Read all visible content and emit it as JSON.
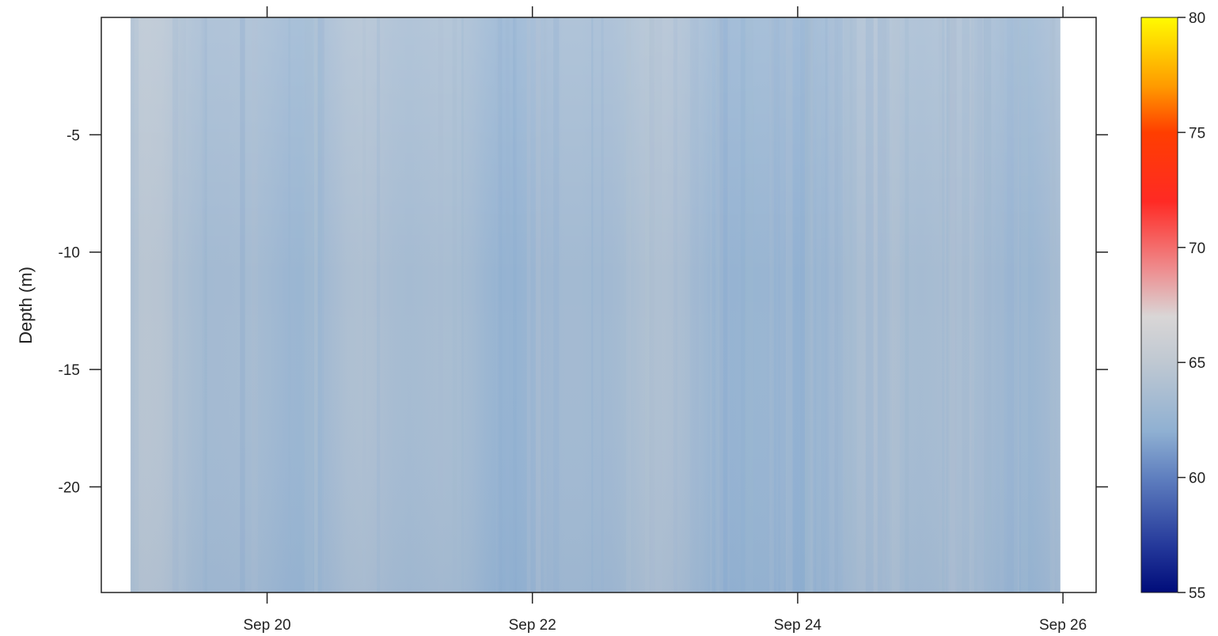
{
  "chart_data": {
    "type": "heatmap",
    "title": "",
    "xlabel": "",
    "ylabel": "Depth (m)",
    "x_ticks": [
      "Sep 20",
      "Sep 22",
      "Sep 24",
      "Sep 26"
    ],
    "x_tick_days": [
      20,
      22,
      24,
      26
    ],
    "x_range_days": [
      18.75,
      26.25
    ],
    "data_x_range_days": [
      18.97,
      25.98
    ],
    "y_ticks": [
      -5,
      -10,
      -15,
      -20
    ],
    "ylim": [
      -24.5,
      0
    ],
    "colorbar": {
      "min": 55,
      "max": 80,
      "ticks": [
        55,
        60,
        65,
        70,
        75,
        80
      ],
      "stops": [
        {
          "value": 55,
          "color": "#000c7a"
        },
        {
          "value": 57,
          "color": "#24389a"
        },
        {
          "value": 60,
          "color": "#5f7fbf"
        },
        {
          "value": 62,
          "color": "#8fb0d2"
        },
        {
          "value": 65,
          "color": "#bfc8d2"
        },
        {
          "value": 67,
          "color": "#d9d6d6"
        },
        {
          "value": 69,
          "color": "#ee8e90"
        },
        {
          "value": 72,
          "color": "#ff2a24"
        },
        {
          "value": 75,
          "color": "#ff3e00"
        },
        {
          "value": 77,
          "color": "#ff9a00"
        },
        {
          "value": 80,
          "color": "#fffb00"
        }
      ]
    },
    "field_description_values": {
      "typical_value": 63.2,
      "surface_upper_value": 64.5,
      "deep_low_value": 61.5
    },
    "grid": false,
    "legend": "colorbar-right"
  }
}
